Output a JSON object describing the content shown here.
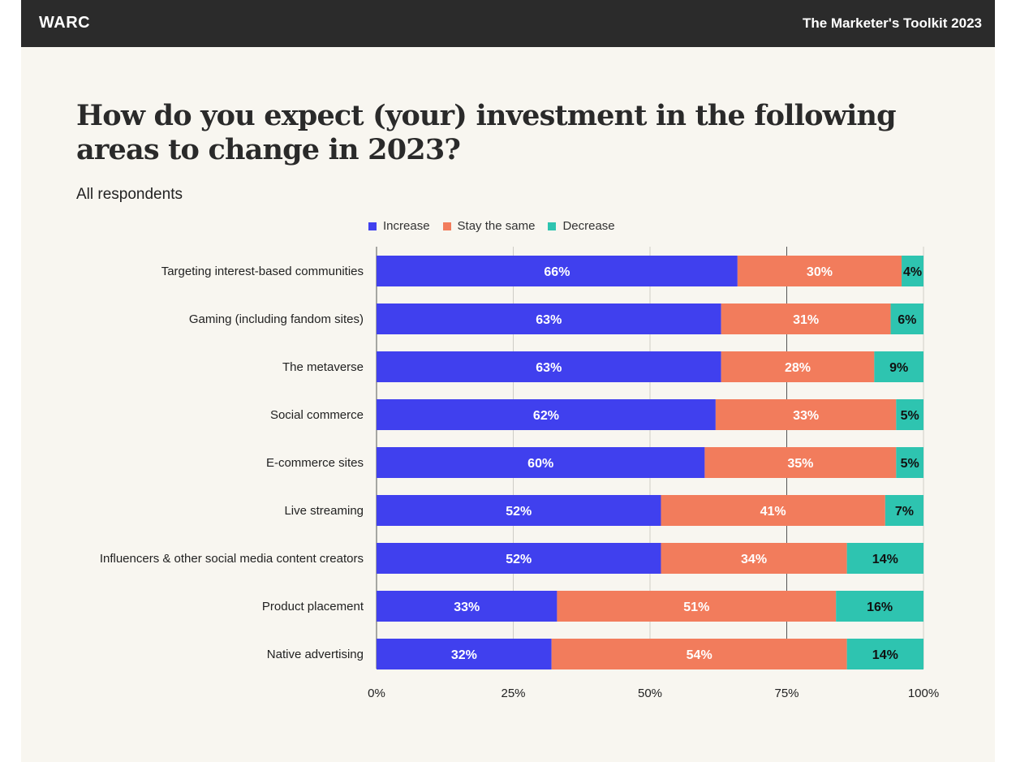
{
  "header": {
    "brand": "WARC",
    "publication": "The Marketer's Toolkit 2023"
  },
  "colors": {
    "increase": "#4040ee",
    "stay_the_same": "#f27c5c",
    "decrease": "#2ec4b0",
    "header_bg": "#2b2b2b",
    "page_bg": "#f8f6f0"
  },
  "chart_data": {
    "type": "bar",
    "orientation": "horizontal",
    "stacked": true,
    "title": "How do you expect (your) investment in the following areas to change in 2023?",
    "subtitle": "All respondents",
    "categories": [
      "Targeting interest-based communities",
      "Gaming (including fandom sites)",
      "The metaverse",
      "Social commerce",
      "E-commerce sites",
      "Live streaming",
      "Influencers & other social  media content creators",
      "Product placement",
      "Native advertising"
    ],
    "series": [
      {
        "name": "Increase",
        "color": "#4040ee",
        "label_color": "#ffffff",
        "values": [
          66,
          63,
          63,
          62,
          60,
          52,
          52,
          33,
          32
        ]
      },
      {
        "name": "Stay the same",
        "color": "#f27c5c",
        "label_color": "#ffffff",
        "values": [
          30,
          31,
          28,
          33,
          35,
          41,
          34,
          51,
          54
        ]
      },
      {
        "name": "Decrease",
        "color": "#2ec4b0",
        "label_color": "#111111",
        "values": [
          4,
          6,
          9,
          5,
          5,
          7,
          14,
          16,
          14
        ]
      }
    ],
    "xlim": [
      0,
      100
    ],
    "xticks": [
      0,
      25,
      50,
      75,
      100
    ],
    "xtick_labels": [
      "0%",
      "25%",
      "50%",
      "75%",
      "100%"
    ],
    "value_suffix": "%",
    "legend_position": "top-center",
    "grid": true
  }
}
